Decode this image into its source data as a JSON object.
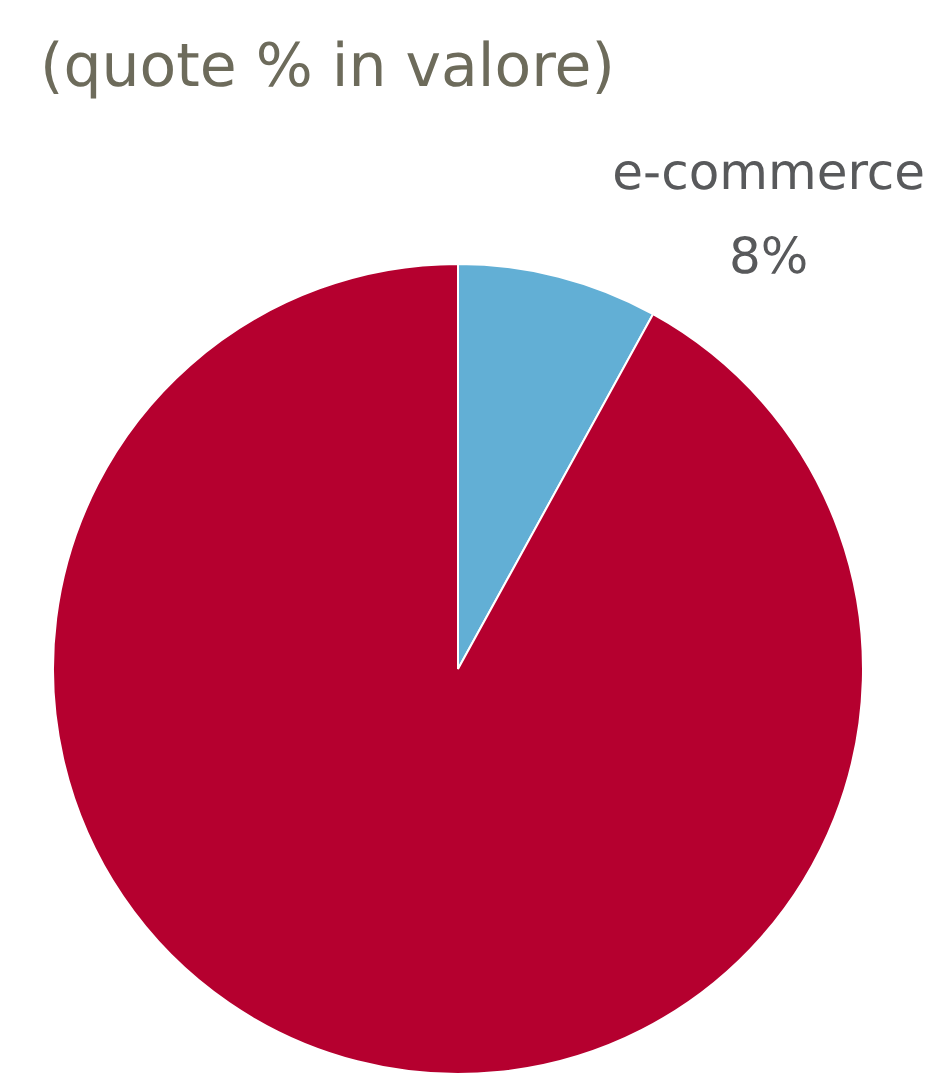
{
  "chart_data": {
    "type": "pie",
    "title": "(quote % in valore)",
    "categories": [
      "e-commerce",
      null
    ],
    "values": [
      8,
      92
    ],
    "colors": [
      "#62afd5",
      "#b5002f"
    ],
    "value_labels": [
      "8%",
      null
    ],
    "legend": false
  }
}
